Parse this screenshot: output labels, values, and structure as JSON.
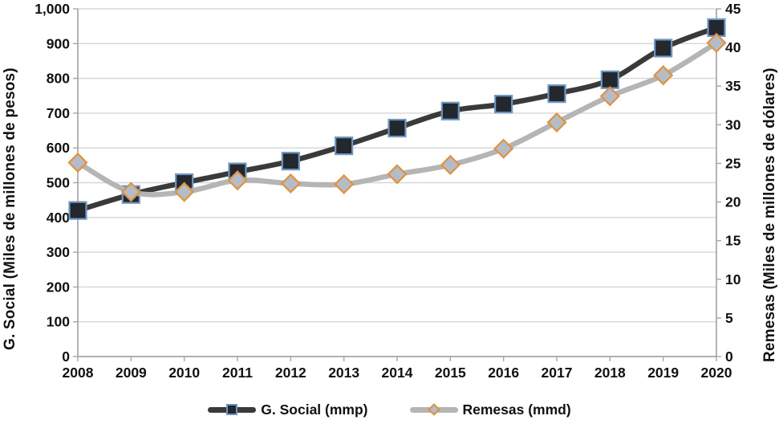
{
  "chart_data": {
    "type": "line",
    "title": "",
    "x_categories": [
      "2008",
      "2009",
      "2010",
      "2011",
      "2012",
      "2013",
      "2014",
      "2015",
      "2016",
      "2017",
      "2018",
      "2019",
      "2020"
    ],
    "left_axis": {
      "label": "G. Social (Miles de millones de pesos)",
      "min": 0,
      "max": 1000,
      "step": 100,
      "tick_labels": [
        "0",
        "100",
        "200",
        "300",
        "400",
        "500",
        "600",
        "700",
        "800",
        "900",
        "1,000"
      ]
    },
    "right_axis": {
      "label": "Remesas (Miles de millones de dólares)",
      "min": 0,
      "max": 45,
      "step": 5,
      "tick_labels": [
        "0",
        "5",
        "10",
        "15",
        "20",
        "25",
        "30",
        "35",
        "40",
        "45"
      ]
    },
    "grid": true,
    "legend_position": "bottom",
    "series": [
      {
        "name": "G. Social (mmp)",
        "axis": "left",
        "marker": "square",
        "line_color": "#3a3a3a",
        "marker_fill": "#23282e",
        "marker_border": "#6e97c2",
        "values": [
          420,
          466,
          500,
          531,
          562,
          606,
          657,
          706,
          726,
          756,
          796,
          887,
          946
        ]
      },
      {
        "name": "Remesas (mmd)",
        "axis": "right",
        "marker": "diamond",
        "line_color": "#b5b5b5",
        "marker_fill": "#b4bcc7",
        "marker_border": "#e0923f",
        "values": [
          25.1,
          21.3,
          21.3,
          22.8,
          22.4,
          22.3,
          23.6,
          24.8,
          26.9,
          30.3,
          33.7,
          36.4,
          40.6
        ]
      }
    ],
    "style": {
      "gridline_color": "#d6d6d6",
      "axis_color": "#a6a6a6",
      "text_color": "#111111",
      "background": "#ffffff"
    }
  }
}
